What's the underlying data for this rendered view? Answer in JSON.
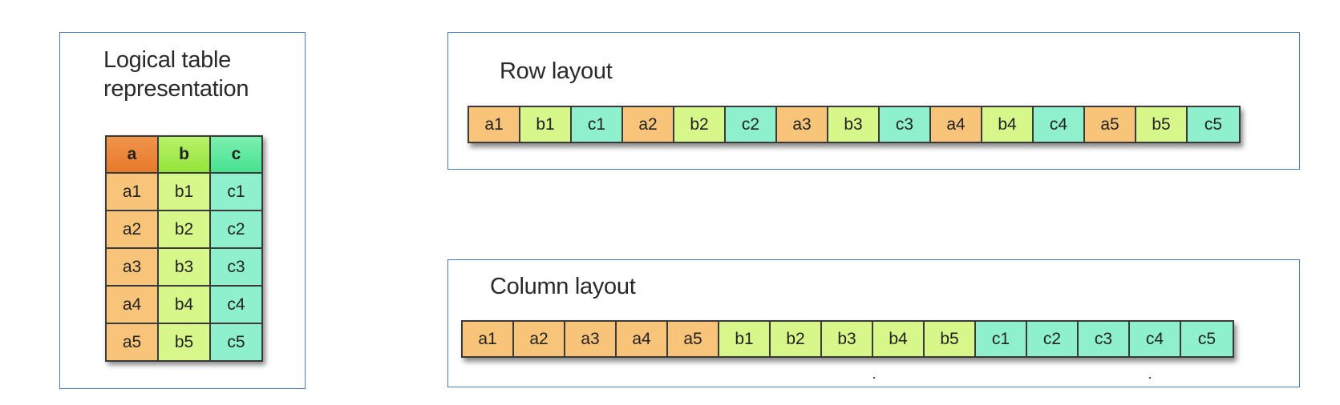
{
  "logical": {
    "title": "Logical table representation",
    "headers": [
      "a",
      "b",
      "c"
    ],
    "rows": [
      [
        "a1",
        "b1",
        "c1"
      ],
      [
        "a2",
        "b2",
        "c2"
      ],
      [
        "a3",
        "b3",
        "c3"
      ],
      [
        "a4",
        "b4",
        "c4"
      ],
      [
        "a5",
        "b5",
        "c5"
      ]
    ]
  },
  "row_layout": {
    "title": "Row layout",
    "cells": [
      "a1",
      "b1",
      "c1",
      "a2",
      "b2",
      "c2",
      "a3",
      "b3",
      "c3",
      "a4",
      "b4",
      "c4",
      "a5",
      "b5",
      "c5"
    ]
  },
  "column_layout": {
    "title": "Column layout",
    "cells": [
      "a1",
      "a2",
      "a3",
      "a4",
      "a5",
      "b1",
      "b2",
      "b3",
      "b4",
      "b5",
      "c1",
      "c2",
      "c3",
      "c4",
      "c5"
    ]
  },
  "colors": {
    "a": "#f7c47a",
    "b": "#d8f78a",
    "c": "#8ef0cc",
    "border": "#4a7fc4"
  }
}
